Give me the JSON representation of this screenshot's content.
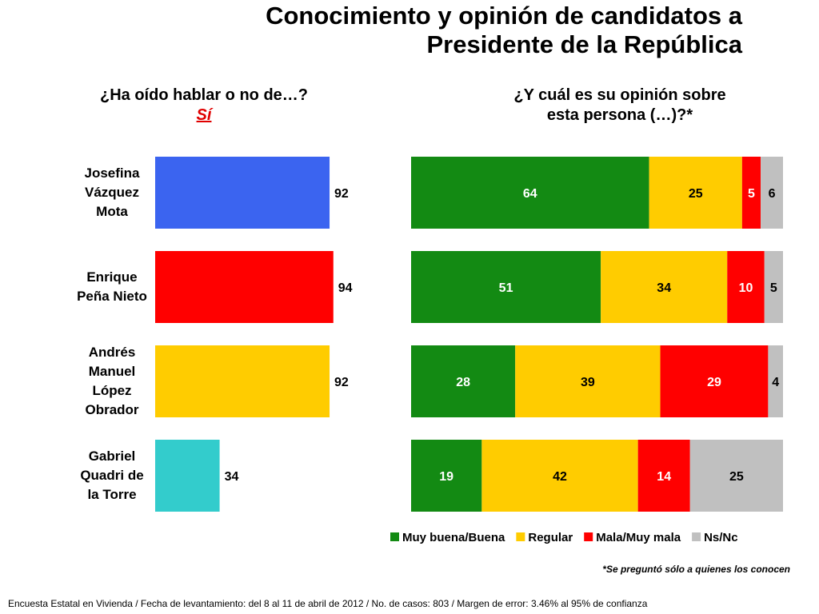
{
  "title_line1": "Conocimiento y opinión de candidatos a",
  "title_line2": "Presidente de la República",
  "left_question": "¿Ha oído hablar o no de…?",
  "left_accent": "Sí",
  "right_question_line1": "¿Y cuál es su opinión sobre",
  "right_question_line2": "esta persona (…)?*",
  "candidates": [
    {
      "name_lines": [
        "Josefina",
        "Vázquez",
        "Mota"
      ]
    },
    {
      "name_lines": [
        "Enrique",
        "Peña Nieto"
      ]
    },
    {
      "name_lines": [
        "Andrés",
        "Manuel",
        "López",
        "Obrador"
      ]
    },
    {
      "name_lines": [
        "Gabriel",
        "Quadri de",
        "la Torre"
      ]
    }
  ],
  "footnote": "*Se preguntó sólo a quienes los conocen",
  "footer": "Encuesta Estatal en Vivienda / Fecha de levantamiento: del  8 al 11 de abril de 2012 / No. de casos: 803 / Margen de error: 3.46% al 95% de confianza",
  "chart_data": [
    {
      "type": "bar",
      "orientation": "horizontal",
      "categories": [
        "Josefina Vázquez Mota",
        "Enrique Peña Nieto",
        "Andrés Manuel López Obrador",
        "Gabriel Quadri de la Torre"
      ],
      "values": [
        92,
        94,
        92,
        34
      ],
      "colors": [
        "#3b64f0",
        "#ff0000",
        "#ffcc00",
        "#33cccc"
      ],
      "xlim": [
        0,
        100
      ],
      "grid": false
    },
    {
      "type": "bar",
      "orientation": "horizontal",
      "stacked": true,
      "categories": [
        "Josefina Vázquez Mota",
        "Enrique Peña Nieto",
        "Andrés Manuel López Obrador",
        "Gabriel Quadri de la Torre"
      ],
      "series": [
        {
          "name": "Muy buena/Buena",
          "color": "#138a13",
          "label_color": "#ffffff",
          "values": [
            64,
            51,
            28,
            19
          ]
        },
        {
          "name": "Regular",
          "color": "#ffcc00",
          "label_color": "#000000",
          "values": [
            25,
            34,
            39,
            42
          ]
        },
        {
          "name": "Mala/Muy mala",
          "color": "#ff0000",
          "label_color": "#ffffff",
          "values": [
            5,
            10,
            29,
            14
          ]
        },
        {
          "name": "Ns/Nc",
          "color": "#c0c0c0",
          "label_color": "#000000",
          "values": [
            6,
            5,
            4,
            25
          ]
        }
      ],
      "xlim": [
        0,
        100
      ],
      "legend": "bottom",
      "grid": false
    }
  ]
}
